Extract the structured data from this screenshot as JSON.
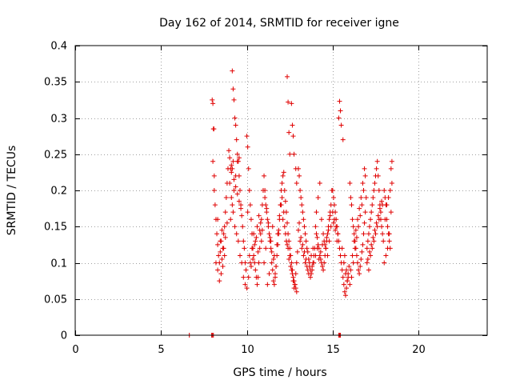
{
  "chart_data": {
    "type": "scatter",
    "title": "Day 162 of 2014, SRMTID for receiver igne",
    "xlabel": "GPS time / hours",
    "ylabel": "SRMTID / TECUs",
    "xlim": [
      0,
      24
    ],
    "ylim": [
      0,
      0.4
    ],
    "x_ticks": [
      0,
      5,
      10,
      15,
      20
    ],
    "x_tick_labels": [
      "0",
      "5",
      "10",
      "15",
      "20"
    ],
    "y_ticks": [
      0,
      0.05,
      0.1,
      0.15,
      0.2,
      0.25,
      0.3,
      0.35,
      0.4
    ],
    "y_tick_labels": [
      "0",
      "0.05",
      "0.1",
      "0.15",
      "0.2",
      "0.25",
      "0.3",
      "0.35",
      "0.4"
    ],
    "grid": true,
    "marker": "+",
    "color": "#e00000",
    "series": [
      {
        "name": "SRMTID",
        "x": [
          6.65,
          7.95,
          8.0,
          8.05,
          15.35,
          15.4,
          15.45,
          7.98,
          8.02,
          8.05,
          8.08,
          8.02,
          8.1,
          8.15,
          8.2,
          8.25,
          8.3,
          8.35,
          8.4,
          8.45,
          8.5,
          8.55,
          8.6,
          8.65,
          8.7,
          8.75,
          8.8,
          8.85,
          8.9,
          8.95,
          8.2,
          8.3,
          8.4,
          8.5,
          8.6,
          8.7,
          8.1,
          8.3,
          8.45,
          8.55,
          8.65,
          8.75,
          8.85,
          9.0,
          9.05,
          9.1,
          9.15,
          9.2,
          9.25,
          9.3,
          9.35,
          9.4,
          9.45,
          9.5,
          9.55,
          9.6,
          9.65,
          9.7,
          9.75,
          9.8,
          9.85,
          9.9,
          9.95,
          9.0,
          9.1,
          9.2,
          9.3,
          9.4,
          9.5,
          9.6,
          9.7,
          9.8,
          9.9,
          9.05,
          9.15,
          9.25,
          9.35,
          9.45,
          9.55,
          9.1,
          9.15,
          9.2,
          9.25,
          9.35,
          9.45,
          9.55,
          9.65,
          10.0,
          10.05,
          10.1,
          10.15,
          10.2,
          10.25,
          10.3,
          10.35,
          10.4,
          10.45,
          10.5,
          10.55,
          10.6,
          10.65,
          10.7,
          10.75,
          10.8,
          10.85,
          10.9,
          10.95,
          10.0,
          10.1,
          10.2,
          10.3,
          10.4,
          10.5,
          10.6,
          10.7,
          10.8,
          10.9,
          10.05,
          10.15,
          10.25,
          10.35,
          10.45,
          10.55,
          10.65,
          10.75,
          10.85,
          11.0,
          11.05,
          11.1,
          11.15,
          11.2,
          11.25,
          11.3,
          11.35,
          11.4,
          11.45,
          11.5,
          11.55,
          11.6,
          11.65,
          11.7,
          11.75,
          11.8,
          11.85,
          11.9,
          11.95,
          11.0,
          11.1,
          11.2,
          11.3,
          11.4,
          11.5,
          11.6,
          11.7,
          11.8,
          11.9,
          11.05,
          11.15,
          11.25,
          11.35,
          11.45,
          11.55,
          11.65,
          11.75,
          11.85,
          12.0,
          12.05,
          12.1,
          12.15,
          12.2,
          12.25,
          12.3,
          12.35,
          12.4,
          12.45,
          12.5,
          12.55,
          12.6,
          12.65,
          12.7,
          12.75,
          12.8,
          12.85,
          12.9,
          12.95,
          12.0,
          12.1,
          12.2,
          12.3,
          12.4,
          12.5,
          12.6,
          12.7,
          12.8,
          12.9,
          12.05,
          12.15,
          12.25,
          12.35,
          12.45,
          12.55,
          12.65,
          12.75,
          12.85,
          12.35,
          12.4,
          12.45,
          12.5,
          12.6,
          12.65,
          12.7,
          12.75,
          12.85,
          12.9,
          13.0,
          13.05,
          13.1,
          13.15,
          13.2,
          13.25,
          13.3,
          13.35,
          13.4,
          13.45,
          13.5,
          13.55,
          13.6,
          13.65,
          13.7,
          13.75,
          13.8,
          13.85,
          13.9,
          13.95,
          13.0,
          13.1,
          13.2,
          13.3,
          13.4,
          13.5,
          13.6,
          13.7,
          13.8,
          13.9,
          13.05,
          13.15,
          13.25,
          13.35,
          13.45,
          13.55,
          13.65,
          13.75,
          13.85,
          14.0,
          14.05,
          14.1,
          14.15,
          14.2,
          14.25,
          14.3,
          14.35,
          14.4,
          14.45,
          14.5,
          14.55,
          14.6,
          14.65,
          14.7,
          14.75,
          14.8,
          14.85,
          14.9,
          14.95,
          14.0,
          14.1,
          14.2,
          14.3,
          14.4,
          14.5,
          14.6,
          14.7,
          14.8,
          14.9,
          14.05,
          14.15,
          14.25,
          14.35,
          14.45,
          14.55,
          14.65,
          14.75,
          14.85,
          15.0,
          15.05,
          15.1,
          15.15,
          15.2,
          15.25,
          15.3,
          15.35,
          15.4,
          15.45,
          15.5,
          15.55,
          15.6,
          15.65,
          15.7,
          15.75,
          15.8,
          15.85,
          15.9,
          15.95,
          15.0,
          15.1,
          15.2,
          15.3,
          15.35,
          15.4,
          15.45,
          15.5,
          15.6,
          15.7,
          15.8,
          15.9,
          15.05,
          15.15,
          15.25,
          15.55,
          15.65,
          15.75,
          15.85,
          16.0,
          16.05,
          16.1,
          16.15,
          16.2,
          16.25,
          16.3,
          16.35,
          16.4,
          16.45,
          16.5,
          16.55,
          16.6,
          16.65,
          16.7,
          16.75,
          16.8,
          16.85,
          16.9,
          16.95,
          16.0,
          16.1,
          16.2,
          16.3,
          16.4,
          16.5,
          16.6,
          16.7,
          16.8,
          16.9,
          16.05,
          16.15,
          16.25,
          16.35,
          16.45,
          16.55,
          16.65,
          16.75,
          16.85,
          17.0,
          17.05,
          17.1,
          17.15,
          17.2,
          17.25,
          17.3,
          17.35,
          17.4,
          17.45,
          17.5,
          17.55,
          17.6,
          17.65,
          17.7,
          17.75,
          17.8,
          17.85,
          17.9,
          17.95,
          17.0,
          17.1,
          17.2,
          17.3,
          17.4,
          17.5,
          17.6,
          17.7,
          17.8,
          17.9,
          17.05,
          17.15,
          17.25,
          17.35,
          17.45,
          17.55,
          17.65,
          17.75,
          17.85,
          18.0,
          18.05,
          18.1,
          18.15,
          18.2,
          18.25,
          18.3,
          18.35,
          18.4,
          18.45,
          18.0,
          18.1,
          18.2,
          18.3,
          18.4,
          18.05,
          18.15,
          18.25,
          18.35,
          18.45
        ],
        "y": [
          0.0,
          0.0,
          0.0,
          0.0,
          0.0,
          0.0,
          0.0,
          0.325,
          0.32,
          0.285,
          0.285,
          0.24,
          0.22,
          0.18,
          0.16,
          0.14,
          0.125,
          0.11,
          0.1,
          0.115,
          0.13,
          0.105,
          0.12,
          0.14,
          0.15,
          0.17,
          0.19,
          0.21,
          0.23,
          0.255,
          0.1,
          0.09,
          0.075,
          0.085,
          0.095,
          0.11,
          0.2,
          0.16,
          0.13,
          0.145,
          0.12,
          0.135,
          0.155,
          0.245,
          0.23,
          0.225,
          0.365,
          0.34,
          0.325,
          0.3,
          0.29,
          0.27,
          0.25,
          0.24,
          0.22,
          0.2,
          0.18,
          0.165,
          0.15,
          0.13,
          0.12,
          0.1,
          0.09,
          0.21,
          0.19,
          0.17,
          0.15,
          0.14,
          0.13,
          0.11,
          0.1,
          0.08,
          0.07,
          0.16,
          0.18,
          0.2,
          0.22,
          0.24,
          0.245,
          0.235,
          0.23,
          0.24,
          0.215,
          0.205,
          0.195,
          0.185,
          0.175,
          0.275,
          0.26,
          0.23,
          0.2,
          0.18,
          0.16,
          0.14,
          0.12,
          0.11,
          0.1,
          0.09,
          0.08,
          0.07,
          0.08,
          0.1,
          0.12,
          0.14,
          0.16,
          0.18,
          0.2,
          0.065,
          0.08,
          0.1,
          0.12,
          0.14,
          0.13,
          0.15,
          0.165,
          0.155,
          0.145,
          0.17,
          0.11,
          0.095,
          0.105,
          0.125,
          0.135,
          0.115,
          0.145,
          0.13,
          0.22,
          0.2,
          0.18,
          0.17,
          0.16,
          0.15,
          0.14,
          0.13,
          0.12,
          0.1,
          0.09,
          0.075,
          0.07,
          0.08,
          0.095,
          0.11,
          0.125,
          0.14,
          0.16,
          0.18,
          0.1,
          0.12,
          0.07,
          0.085,
          0.13,
          0.15,
          0.11,
          0.095,
          0.14,
          0.165,
          0.19,
          0.175,
          0.155,
          0.135,
          0.115,
          0.105,
          0.085,
          0.125,
          0.145,
          0.2,
          0.21,
          0.22,
          0.225,
          0.2,
          0.185,
          0.17,
          0.155,
          0.14,
          0.13,
          0.12,
          0.11,
          0.1,
          0.09,
          0.075,
          0.065,
          0.07,
          0.085,
          0.1,
          0.115,
          0.18,
          0.16,
          0.15,
          0.13,
          0.12,
          0.11,
          0.09,
          0.08,
          0.07,
          0.06,
          0.19,
          0.17,
          0.14,
          0.125,
          0.105,
          0.095,
          0.085,
          0.075,
          0.065,
          0.357,
          0.322,
          0.28,
          0.25,
          0.32,
          0.29,
          0.275,
          0.25,
          0.23,
          0.21,
          0.23,
          0.22,
          0.2,
          0.19,
          0.18,
          0.17,
          0.16,
          0.15,
          0.14,
          0.13,
          0.12,
          0.115,
          0.105,
          0.095,
          0.09,
          0.085,
          0.095,
          0.1,
          0.11,
          0.12,
          0.145,
          0.13,
          0.12,
          0.11,
          0.1,
          0.095,
          0.085,
          0.08,
          0.09,
          0.1,
          0.155,
          0.135,
          0.125,
          0.115,
          0.105,
          0.09,
          0.1,
          0.11,
          0.12,
          0.15,
          0.14,
          0.135,
          0.125,
          0.12,
          0.11,
          0.105,
          0.1,
          0.095,
          0.09,
          0.1,
          0.11,
          0.12,
          0.13,
          0.14,
          0.15,
          0.16,
          0.17,
          0.18,
          0.2,
          0.11,
          0.12,
          0.105,
          0.115,
          0.125,
          0.13,
          0.12,
          0.11,
          0.13,
          0.15,
          0.17,
          0.19,
          0.21,
          0.16,
          0.14,
          0.125,
          0.135,
          0.145,
          0.165,
          0.2,
          0.19,
          0.18,
          0.17,
          0.16,
          0.15,
          0.14,
          0.13,
          0.12,
          0.11,
          0.1,
          0.09,
          0.08,
          0.07,
          0.06,
          0.055,
          0.065,
          0.075,
          0.085,
          0.095,
          0.17,
          0.16,
          0.15,
          0.14,
          0.3,
          0.323,
          0.31,
          0.29,
          0.27,
          0.11,
          0.09,
          0.08,
          0.155,
          0.145,
          0.13,
          0.12,
          0.1,
          0.085,
          0.075,
          0.21,
          0.19,
          0.18,
          0.16,
          0.15,
          0.14,
          0.13,
          0.12,
          0.11,
          0.1,
          0.09,
          0.085,
          0.095,
          0.105,
          0.115,
          0.125,
          0.14,
          0.155,
          0.17,
          0.19,
          0.07,
          0.08,
          0.1,
          0.12,
          0.135,
          0.15,
          0.165,
          0.18,
          0.2,
          0.22,
          0.09,
          0.11,
          0.13,
          0.145,
          0.16,
          0.175,
          0.19,
          0.21,
          0.23,
          0.12,
          0.13,
          0.14,
          0.15,
          0.16,
          0.17,
          0.18,
          0.19,
          0.2,
          0.21,
          0.22,
          0.23,
          0.24,
          0.22,
          0.2,
          0.18,
          0.16,
          0.15,
          0.14,
          0.13,
          0.1,
          0.09,
          0.11,
          0.12,
          0.13,
          0.14,
          0.15,
          0.16,
          0.17,
          0.18,
          0.105,
          0.115,
          0.125,
          0.135,
          0.145,
          0.155,
          0.165,
          0.175,
          0.185,
          0.2,
          0.19,
          0.18,
          0.16,
          0.15,
          0.14,
          0.13,
          0.12,
          0.23,
          0.24,
          0.1,
          0.11,
          0.12,
          0.14,
          0.17,
          0.16,
          0.18,
          0.19,
          0.2,
          0.21
        ]
      }
    ]
  }
}
